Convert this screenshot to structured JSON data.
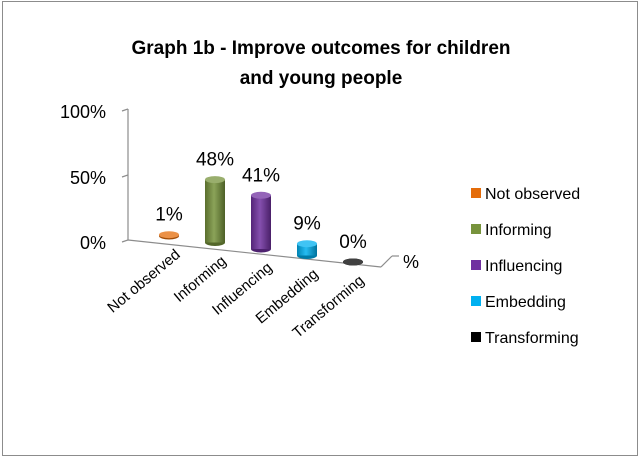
{
  "chart_data": {
    "type": "bar",
    "title_lines": [
      "Graph 1b - Improve outcomes for children",
      "and young people"
    ],
    "categories": [
      "Not observed",
      "Informing",
      "Influencing",
      "Embedding",
      "Transforming"
    ],
    "series": [
      {
        "values": [
          1,
          48,
          41,
          9,
          0
        ]
      }
    ],
    "data_labels": [
      "1%",
      "48%",
      "41%",
      "9%",
      "0%"
    ],
    "colors": [
      "#e46c0a",
      "#77933c",
      "#7030a0",
      "#00b0f0",
      "#000000"
    ],
    "y_ticks": [
      "0%",
      "50%",
      "100%"
    ],
    "ylim": [
      0,
      100
    ],
    "series_axis_label": "%",
    "legend": {
      "position": "right",
      "entries": [
        "Not observed",
        "Informing",
        "Influencing",
        "Embedding",
        "Transforming"
      ]
    },
    "grid": false
  }
}
